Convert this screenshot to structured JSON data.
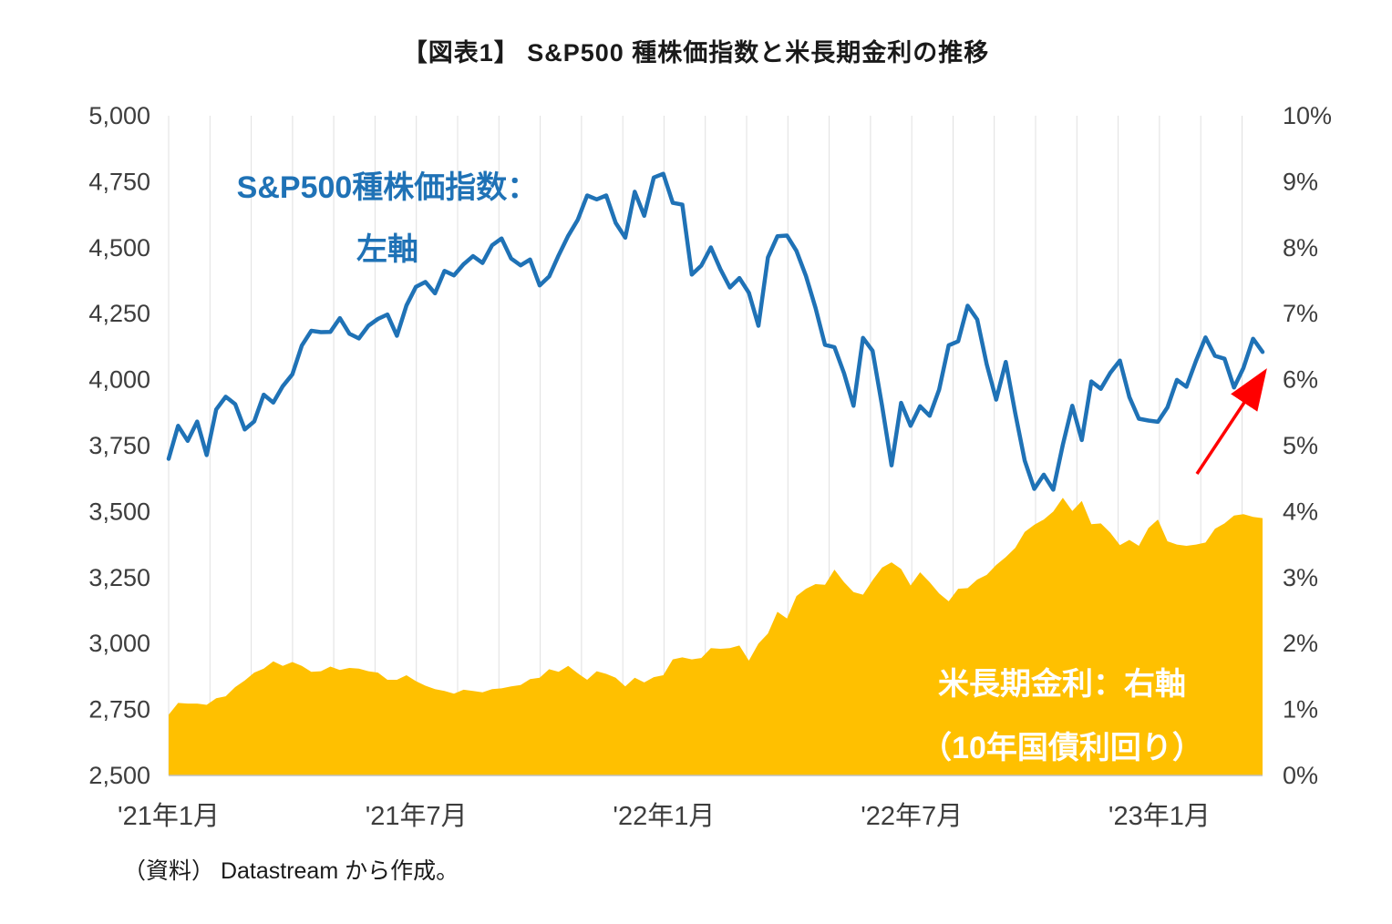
{
  "title": "【図表1】 S&P500 種株価指数と米長期金利の推移",
  "source_note": "（資料） Datastream から作成。",
  "annotations": {
    "sp500_label_line1": "S&P500種株価指数：",
    "sp500_label_line2": "左軸",
    "yield_label_line1": "米長期金利：右軸",
    "yield_label_line2": "（10年国債利回り）"
  },
  "colors": {
    "sp500_line": "#1F72B6",
    "yield_area": "#FFC000",
    "arrow": "#FF0000",
    "axis_text": "#3d3d3d",
    "gridline": "#E0E0E0",
    "axis_line": "#BFBFBF"
  },
  "chart_data": {
    "type": "line",
    "title": "【図表1】 S&P500 種株価指数と米長期金利の推移",
    "x_unit": "week",
    "weeks_per_month": 4.34,
    "x_labels": [
      {
        "label": "'21年1月",
        "month": 0
      },
      {
        "label": "'21年7月",
        "month": 6
      },
      {
        "label": "'22年1月",
        "month": 12
      },
      {
        "label": "'22年7月",
        "month": 18
      },
      {
        "label": "'23年1月",
        "month": 24
      }
    ],
    "left_axis": {
      "min": 2500,
      "max": 5000,
      "step": 250,
      "labels": [
        "2,500",
        "2,750",
        "3,000",
        "3,250",
        "3,500",
        "3,750",
        "4,000",
        "4,250",
        "4,500",
        "4,750",
        "5,000"
      ]
    },
    "right_axis": {
      "min": 0,
      "max": 10,
      "step": 1,
      "labels": [
        "0%",
        "1%",
        "2%",
        "3%",
        "4%",
        "5%",
        "6%",
        "7%",
        "8%",
        "9%",
        "10%"
      ]
    },
    "grid": "monthly-vertical",
    "legend_position": "in-plot-annotations",
    "series": [
      {
        "name": "S&P500種株価指数（左軸）",
        "axis": "left",
        "style": "line",
        "values": [
          3700,
          3825,
          3768,
          3841,
          3714,
          3887,
          3935,
          3907,
          3811,
          3842,
          3943,
          3913,
          3975,
          4020,
          4129,
          4185,
          4180,
          4181,
          4233,
          4174,
          4156,
          4204,
          4230,
          4247,
          4166,
          4281,
          4352,
          4370,
          4327,
          4412,
          4395,
          4437,
          4468,
          4442,
          4509,
          4535,
          4459,
          4433,
          4455,
          4357,
          4391,
          4471,
          4545,
          4605,
          4698,
          4683,
          4698,
          4594,
          4538,
          4712,
          4621,
          4766,
          4780,
          4670,
          4663,
          4398,
          4432,
          4501,
          4419,
          4349,
          4385,
          4329,
          4204,
          4463,
          4543,
          4546,
          4488,
          4393,
          4272,
          4132,
          4123,
          4024,
          3901,
          4158,
          4109,
          3901,
          3675,
          3912,
          3825,
          3899,
          3863,
          3962,
          4130,
          4145,
          4280,
          4228,
          4058,
          3924,
          4067,
          3873,
          3693,
          3586,
          3640,
          3583,
          3753,
          3901,
          3771,
          3993,
          3965,
          4026,
          4072,
          3934,
          3852,
          3845,
          3840,
          3895,
          3999,
          3973,
          4071,
          4160,
          4090,
          4079,
          3970,
          4045,
          4155,
          4105
        ]
      },
      {
        "name": "米長期金利：右軸（10年国債利回り）",
        "axis": "right",
        "style": "area",
        "values": [
          0.92,
          1.1,
          1.09,
          1.09,
          1.07,
          1.17,
          1.2,
          1.34,
          1.44,
          1.56,
          1.62,
          1.73,
          1.66,
          1.72,
          1.66,
          1.57,
          1.58,
          1.65,
          1.6,
          1.63,
          1.62,
          1.58,
          1.56,
          1.45,
          1.45,
          1.52,
          1.43,
          1.36,
          1.31,
          1.28,
          1.24,
          1.3,
          1.28,
          1.26,
          1.31,
          1.32,
          1.35,
          1.37,
          1.46,
          1.48,
          1.61,
          1.57,
          1.66,
          1.55,
          1.45,
          1.58,
          1.54,
          1.48,
          1.35,
          1.48,
          1.41,
          1.49,
          1.52,
          1.76,
          1.79,
          1.76,
          1.78,
          1.93,
          1.92,
          1.93,
          1.97,
          1.74,
          2.0,
          2.15,
          2.48,
          2.38,
          2.72,
          2.83,
          2.9,
          2.89,
          3.12,
          2.93,
          2.78,
          2.74,
          2.96,
          3.15,
          3.23,
          3.13,
          2.88,
          3.08,
          2.93,
          2.76,
          2.64,
          2.83,
          2.84,
          2.97,
          3.04,
          3.19,
          3.31,
          3.45,
          3.69,
          3.8,
          3.88,
          4.0,
          4.21,
          4.01,
          4.16,
          3.81,
          3.82,
          3.68,
          3.49,
          3.57,
          3.48,
          3.75,
          3.88,
          3.55,
          3.5,
          3.48,
          3.5,
          3.53,
          3.74,
          3.82,
          3.94,
          3.96,
          3.92,
          3.9
        ]
      }
    ]
  }
}
